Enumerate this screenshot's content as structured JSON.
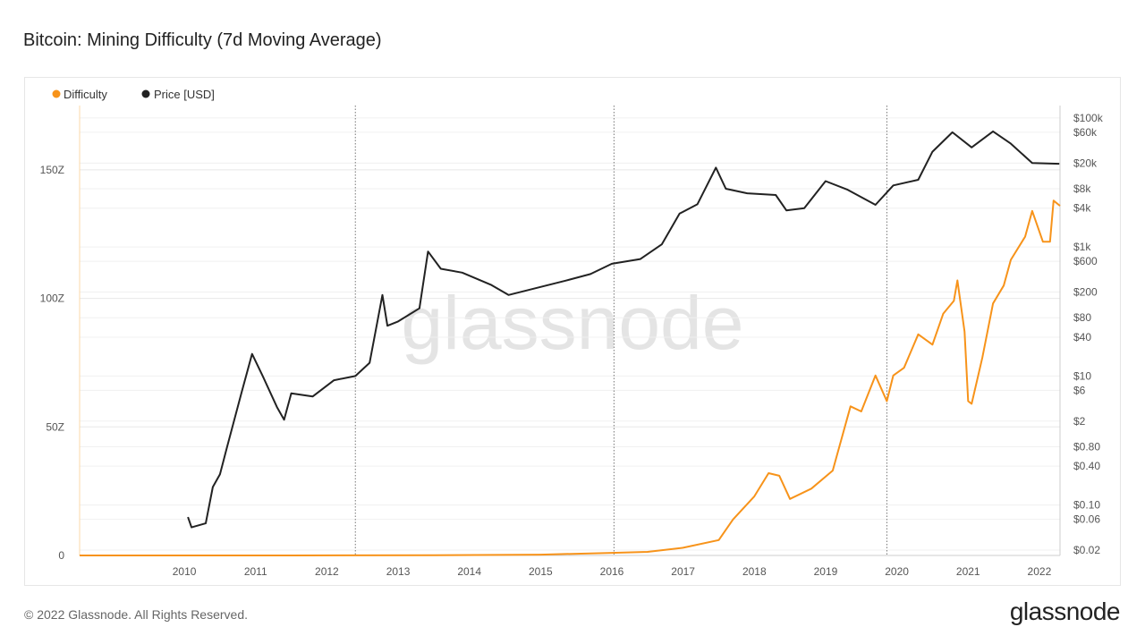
{
  "title": "Bitcoin: Mining Difficulty (7d Moving Average)",
  "footer": "© 2022 Glassnode. All Rights Reserved.",
  "logo": "glassnode",
  "watermark": "glassnode",
  "chart_data": {
    "type": "line",
    "title": "Bitcoin: Mining Difficulty (7d Moving Average)",
    "legend_position": "top-left",
    "grid": true,
    "x_range": [
      2009.03,
      2022.79
    ],
    "x_ticks": [
      "2010",
      "2011",
      "2012",
      "2013",
      "2014",
      "2015",
      "2016",
      "2017",
      "2018",
      "2019",
      "2020",
      "2021",
      "2022"
    ],
    "vertical_markers": [
      2012.9,
      2016.53,
      2020.36
    ],
    "y_left": {
      "range": [
        0,
        175
      ],
      "ticks": [
        {
          "v": 0,
          "label": "0"
        },
        {
          "v": 50,
          "label": "50Z"
        },
        {
          "v": 100,
          "label": "100Z"
        },
        {
          "v": 150,
          "label": "150Z"
        }
      ]
    },
    "y_right": {
      "scale": "log",
      "range": [
        0.0165,
        156000
      ],
      "ticks": [
        {
          "v": 0.02,
          "label": "$0.02"
        },
        {
          "v": 0.06,
          "label": "$0.06"
        },
        {
          "v": 0.1,
          "label": "$0.10"
        },
        {
          "v": 0.4,
          "label": "$0.40"
        },
        {
          "v": 0.8,
          "label": "$0.80"
        },
        {
          "v": 2,
          "label": "$2"
        },
        {
          "v": 6,
          "label": "$6"
        },
        {
          "v": 10,
          "label": "$10"
        },
        {
          "v": 40,
          "label": "$40"
        },
        {
          "v": 80,
          "label": "$80"
        },
        {
          "v": 200,
          "label": "$200"
        },
        {
          "v": 600,
          "label": "$600"
        },
        {
          "v": 1000,
          "label": "$1k"
        },
        {
          "v": 4000,
          "label": "$4k"
        },
        {
          "v": 8000,
          "label": "$8k"
        },
        {
          "v": 20000,
          "label": "$20k"
        },
        {
          "v": 60000,
          "label": "$60k"
        },
        {
          "v": 100000,
          "label": "$100k"
        }
      ]
    },
    "series": [
      {
        "name": "Difficulty",
        "axis": "left",
        "color": "#f7931a",
        "points": [
          [
            2009.03,
            0
          ],
          [
            2012.0,
            0
          ],
          [
            2014.0,
            0.1
          ],
          [
            2015.5,
            0.3
          ],
          [
            2016.5,
            1
          ],
          [
            2017.0,
            1.4
          ],
          [
            2017.5,
            3
          ],
          [
            2018.0,
            6
          ],
          [
            2018.2,
            14
          ],
          [
            2018.5,
            23
          ],
          [
            2018.7,
            32
          ],
          [
            2018.85,
            31
          ],
          [
            2019.0,
            22
          ],
          [
            2019.3,
            26
          ],
          [
            2019.6,
            33
          ],
          [
            2019.85,
            58
          ],
          [
            2020.0,
            56
          ],
          [
            2020.2,
            70
          ],
          [
            2020.36,
            60
          ],
          [
            2020.45,
            70
          ],
          [
            2020.6,
            73
          ],
          [
            2020.8,
            86
          ],
          [
            2021.0,
            82
          ],
          [
            2021.15,
            94
          ],
          [
            2021.3,
            99
          ],
          [
            2021.35,
            107
          ],
          [
            2021.45,
            87
          ],
          [
            2021.5,
            60
          ],
          [
            2021.55,
            59
          ],
          [
            2021.7,
            77
          ],
          [
            2021.85,
            98
          ],
          [
            2022.0,
            105
          ],
          [
            2022.1,
            115
          ],
          [
            2022.3,
            124
          ],
          [
            2022.4,
            134
          ],
          [
            2022.55,
            122
          ],
          [
            2022.65,
            122
          ],
          [
            2022.7,
            138
          ],
          [
            2022.79,
            136
          ]
        ]
      },
      {
        "name": "Price [USD]",
        "axis": "right",
        "color": "#222222",
        "points": [
          [
            2010.55,
            0.065
          ],
          [
            2010.6,
            0.045
          ],
          [
            2010.8,
            0.052
          ],
          [
            2010.9,
            0.19
          ],
          [
            2011.0,
            0.3
          ],
          [
            2011.1,
            0.8
          ],
          [
            2011.3,
            5.4
          ],
          [
            2011.45,
            22
          ],
          [
            2011.6,
            10
          ],
          [
            2011.8,
            3.3
          ],
          [
            2011.9,
            2.1
          ],
          [
            2012.0,
            5.4
          ],
          [
            2012.3,
            4.8
          ],
          [
            2012.6,
            8.6
          ],
          [
            2012.9,
            10
          ],
          [
            2013.1,
            16
          ],
          [
            2013.28,
            180
          ],
          [
            2013.35,
            60
          ],
          [
            2013.5,
            70
          ],
          [
            2013.8,
            112
          ],
          [
            2013.92,
            850
          ],
          [
            2014.1,
            460
          ],
          [
            2014.4,
            400
          ],
          [
            2014.8,
            260
          ],
          [
            2015.05,
            180
          ],
          [
            2015.5,
            240
          ],
          [
            2015.85,
            300
          ],
          [
            2016.2,
            380
          ],
          [
            2016.5,
            550
          ],
          [
            2016.9,
            650
          ],
          [
            2017.2,
            1100
          ],
          [
            2017.45,
            3300
          ],
          [
            2017.7,
            4600
          ],
          [
            2017.96,
            17000
          ],
          [
            2018.1,
            8000
          ],
          [
            2018.4,
            6800
          ],
          [
            2018.8,
            6400
          ],
          [
            2018.95,
            3700
          ],
          [
            2019.2,
            4000
          ],
          [
            2019.5,
            10500
          ],
          [
            2019.8,
            7800
          ],
          [
            2020.2,
            4500
          ],
          [
            2020.45,
            9000
          ],
          [
            2020.8,
            11000
          ],
          [
            2021.0,
            30000
          ],
          [
            2021.28,
            60000
          ],
          [
            2021.55,
            35000
          ],
          [
            2021.85,
            62000
          ],
          [
            2022.1,
            40000
          ],
          [
            2022.4,
            20000
          ],
          [
            2022.78,
            19500
          ]
        ]
      }
    ]
  }
}
